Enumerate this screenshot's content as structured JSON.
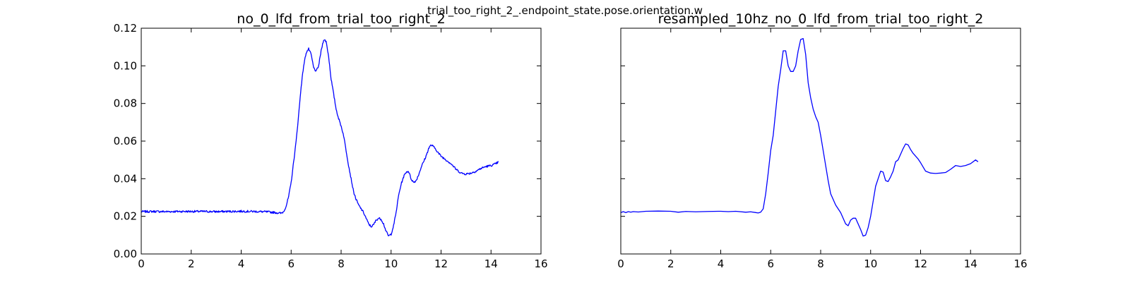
{
  "figure": {
    "suptitle": "trial_too_right_2_.endpoint_state.pose.orientation.w"
  },
  "chart_data": [
    {
      "type": "line",
      "title": "no_0_lfd_from_trial_too_right_2",
      "xlabel": "",
      "ylabel": "",
      "xlim": [
        0,
        16
      ],
      "ylim": [
        0.0,
        0.12
      ],
      "xticks": [
        "0",
        "2",
        "4",
        "6",
        "8",
        "10",
        "12",
        "14",
        "16"
      ],
      "yticks": [
        "0.00",
        "0.02",
        "0.04",
        "0.06",
        "0.08",
        "0.10",
        "0.12"
      ],
      "grid": false,
      "color": "#0000ff",
      "noisy": true,
      "series": [
        {
          "x": [
            0.0,
            0.5,
            1.0,
            1.5,
            2.0,
            2.5,
            3.0,
            3.5,
            4.0,
            4.5,
            5.0,
            5.3,
            5.5,
            5.6,
            5.7,
            5.8,
            5.9,
            6.0,
            6.1,
            6.2,
            6.3,
            6.4,
            6.5,
            6.6,
            6.7,
            6.8,
            6.9,
            7.0,
            7.1,
            7.2,
            7.3,
            7.4,
            7.5,
            7.6,
            7.7,
            7.8,
            7.9,
            8.0,
            8.1,
            8.2,
            8.3,
            8.4,
            8.5,
            8.6,
            8.7,
            8.8,
            8.9,
            9.0,
            9.1,
            9.2,
            9.3,
            9.4,
            9.5,
            9.6,
            9.7,
            9.8,
            9.9,
            10.0,
            10.1,
            10.2,
            10.3,
            10.4,
            10.5,
            10.6,
            10.7,
            10.8,
            10.9,
            11.0,
            11.1,
            11.2,
            11.3,
            11.4,
            11.5,
            11.6,
            11.7,
            11.8,
            11.9,
            12.0,
            12.2,
            12.4,
            12.6,
            12.8,
            13.0,
            13.2,
            13.4,
            13.6,
            13.8,
            14.0,
            14.2,
            14.3
          ],
          "y": [
            0.0225,
            0.0226,
            0.0225,
            0.0226,
            0.0226,
            0.0226,
            0.0225,
            0.0226,
            0.0227,
            0.0226,
            0.0224,
            0.0221,
            0.0218,
            0.0216,
            0.0225,
            0.0255,
            0.0305,
            0.038,
            0.049,
            0.06,
            0.074,
            0.089,
            0.1,
            0.107,
            0.109,
            0.106,
            0.099,
            0.097,
            0.1,
            0.108,
            0.114,
            0.113,
            0.105,
            0.093,
            0.085,
            0.077,
            0.072,
            0.068,
            0.063,
            0.055,
            0.047,
            0.04,
            0.033,
            0.029,
            0.026,
            0.024,
            0.022,
            0.019,
            0.016,
            0.0145,
            0.0155,
            0.018,
            0.019,
            0.0185,
            0.016,
            0.012,
            0.0095,
            0.0105,
            0.015,
            0.022,
            0.031,
            0.037,
            0.041,
            0.0435,
            0.044,
            0.04,
            0.038,
            0.039,
            0.042,
            0.046,
            0.049,
            0.052,
            0.056,
            0.058,
            0.057,
            0.0555,
            0.0535,
            0.052,
            0.05,
            0.048,
            0.045,
            0.043,
            0.0425,
            0.043,
            0.044,
            0.0455,
            0.0465,
            0.047,
            0.048,
            0.049
          ]
        }
      ]
    },
    {
      "type": "line",
      "title": "resampled_10hz_no_0_lfd_from_trial_too_right_2",
      "xlabel": "",
      "ylabel": "",
      "xlim": [
        0,
        16
      ],
      "ylim": [
        0.0,
        0.12
      ],
      "xticks": [
        "0",
        "2",
        "4",
        "6",
        "8",
        "10",
        "12",
        "14",
        "16"
      ],
      "yticks": [],
      "grid": false,
      "color": "#0000ff",
      "noisy": false,
      "series": [
        {
          "x": [
            0.0,
            0.1,
            0.2,
            0.3,
            0.4,
            0.5,
            0.7,
            1.0,
            1.5,
            2.0,
            2.3,
            2.6,
            3.0,
            3.5,
            4.0,
            4.3,
            4.6,
            5.0,
            5.2,
            5.4,
            5.5,
            5.6,
            5.7,
            5.8,
            5.9,
            6.0,
            6.1,
            6.2,
            6.3,
            6.4,
            6.5,
            6.6,
            6.7,
            6.8,
            6.9,
            7.0,
            7.1,
            7.2,
            7.3,
            7.4,
            7.5,
            7.6,
            7.7,
            7.8,
            7.9,
            8.0,
            8.1,
            8.2,
            8.3,
            8.4,
            8.5,
            8.6,
            8.7,
            8.8,
            8.9,
            9.0,
            9.1,
            9.2,
            9.3,
            9.4,
            9.5,
            9.6,
            9.7,
            9.8,
            9.9,
            10.0,
            10.1,
            10.2,
            10.3,
            10.4,
            10.5,
            10.6,
            10.7,
            10.8,
            10.9,
            11.0,
            11.1,
            11.2,
            11.3,
            11.4,
            11.5,
            11.6,
            11.7,
            11.8,
            11.9,
            12.0,
            12.2,
            12.4,
            12.6,
            12.8,
            13.0,
            13.2,
            13.4,
            13.6,
            13.8,
            14.0,
            14.2,
            14.3
          ],
          "y": [
            0.022,
            0.0225,
            0.022,
            0.0225,
            0.0222,
            0.0225,
            0.0223,
            0.0227,
            0.0228,
            0.0227,
            0.0222,
            0.0226,
            0.0224,
            0.0226,
            0.0227,
            0.0225,
            0.0227,
            0.0222,
            0.0224,
            0.022,
            0.0218,
            0.0222,
            0.024,
            0.032,
            0.043,
            0.055,
            0.063,
            0.076,
            0.089,
            0.098,
            0.108,
            0.108,
            0.1,
            0.097,
            0.097,
            0.1,
            0.108,
            0.114,
            0.1145,
            0.106,
            0.091,
            0.083,
            0.077,
            0.073,
            0.07,
            0.063,
            0.055,
            0.047,
            0.039,
            0.032,
            0.029,
            0.026,
            0.024,
            0.022,
            0.019,
            0.016,
            0.015,
            0.018,
            0.019,
            0.019,
            0.016,
            0.013,
            0.0095,
            0.01,
            0.014,
            0.02,
            0.028,
            0.036,
            0.04,
            0.044,
            0.0435,
            0.039,
            0.0385,
            0.041,
            0.044,
            0.049,
            0.05,
            0.053,
            0.056,
            0.0585,
            0.058,
            0.0555,
            0.0535,
            0.052,
            0.0505,
            0.0485,
            0.044,
            0.043,
            0.0428,
            0.043,
            0.0433,
            0.045,
            0.047,
            0.0465,
            0.047,
            0.048,
            0.05,
            0.049
          ]
        }
      ]
    }
  ]
}
